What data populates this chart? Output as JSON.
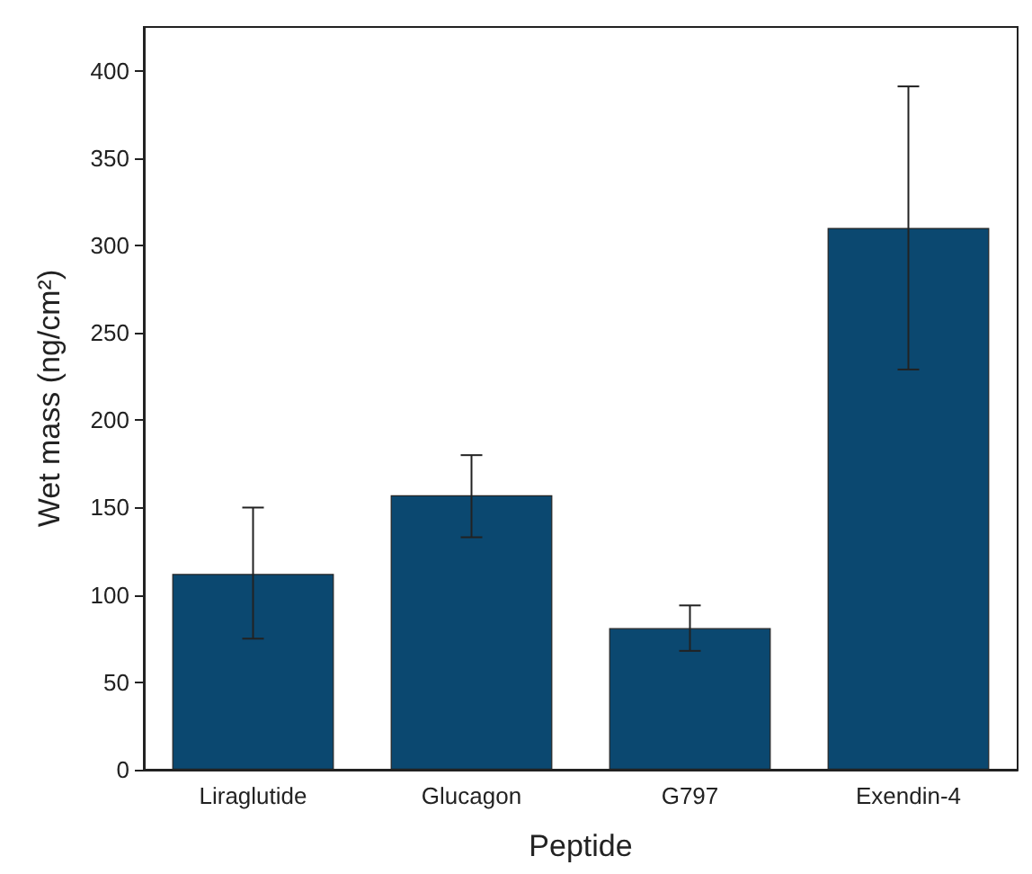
{
  "chart_data": {
    "type": "bar",
    "xlabel": "Peptide",
    "ylabel": "Wet mass (ng/cm²)",
    "categories": [
      "Liraglutide",
      "Glucagon",
      "G797",
      "Exendin-4"
    ],
    "values": [
      112,
      157,
      81,
      310
    ],
    "errors": [
      [
        75,
        150
      ],
      [
        133,
        180
      ],
      [
        68,
        94
      ],
      [
        229,
        391
      ]
    ],
    "color": "#0b4870",
    "ylim": [
      0,
      425
    ],
    "yticks": [
      0,
      50,
      100,
      150,
      200,
      250,
      300,
      350,
      400
    ],
    "grid": false
  }
}
